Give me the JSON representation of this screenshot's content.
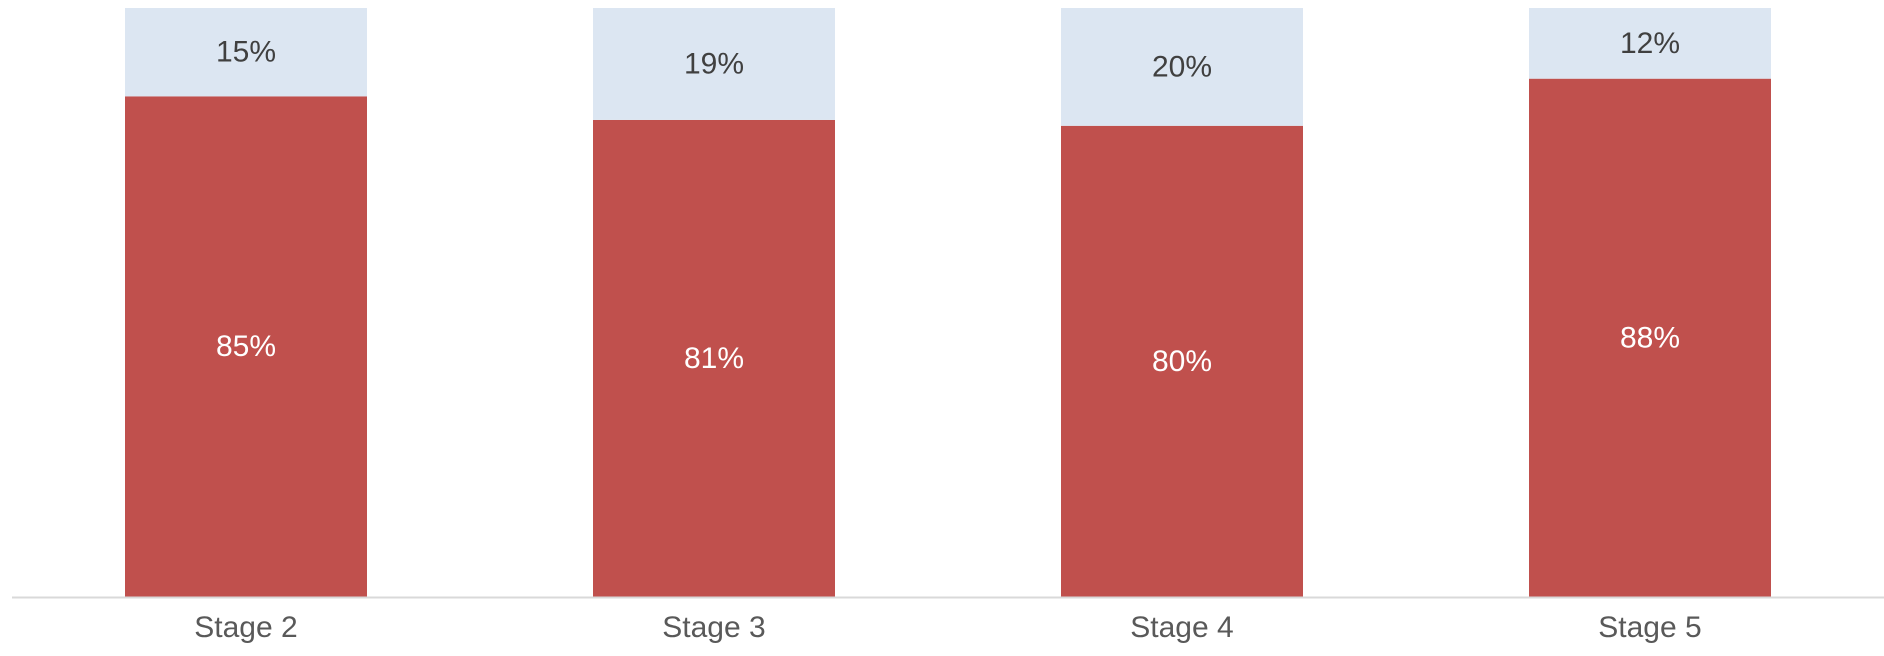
{
  "chart_data": {
    "type": "bar",
    "stacked": true,
    "orientation": "vertical",
    "categories": [
      "Stage 2",
      "Stage 3",
      "Stage 4",
      "Stage 5"
    ],
    "series": [
      {
        "values": [
          85,
          81,
          80,
          88
        ],
        "labels": [
          "85%",
          "81%",
          "80%",
          "88%"
        ],
        "color": "#c0504d",
        "label_color": "#ffffff"
      },
      {
        "values": [
          15,
          19,
          20,
          12
        ],
        "labels": [
          "15%",
          "19%",
          "20%",
          "12%"
        ],
        "color": "#dce6f2",
        "label_color": "#404040"
      }
    ],
    "ylim": [
      0,
      100
    ],
    "title": "",
    "xlabel": "",
    "ylabel": "",
    "grid": false,
    "legend": "none",
    "axis_color": "#d9d9d9",
    "tick_label_color": "#595959"
  }
}
